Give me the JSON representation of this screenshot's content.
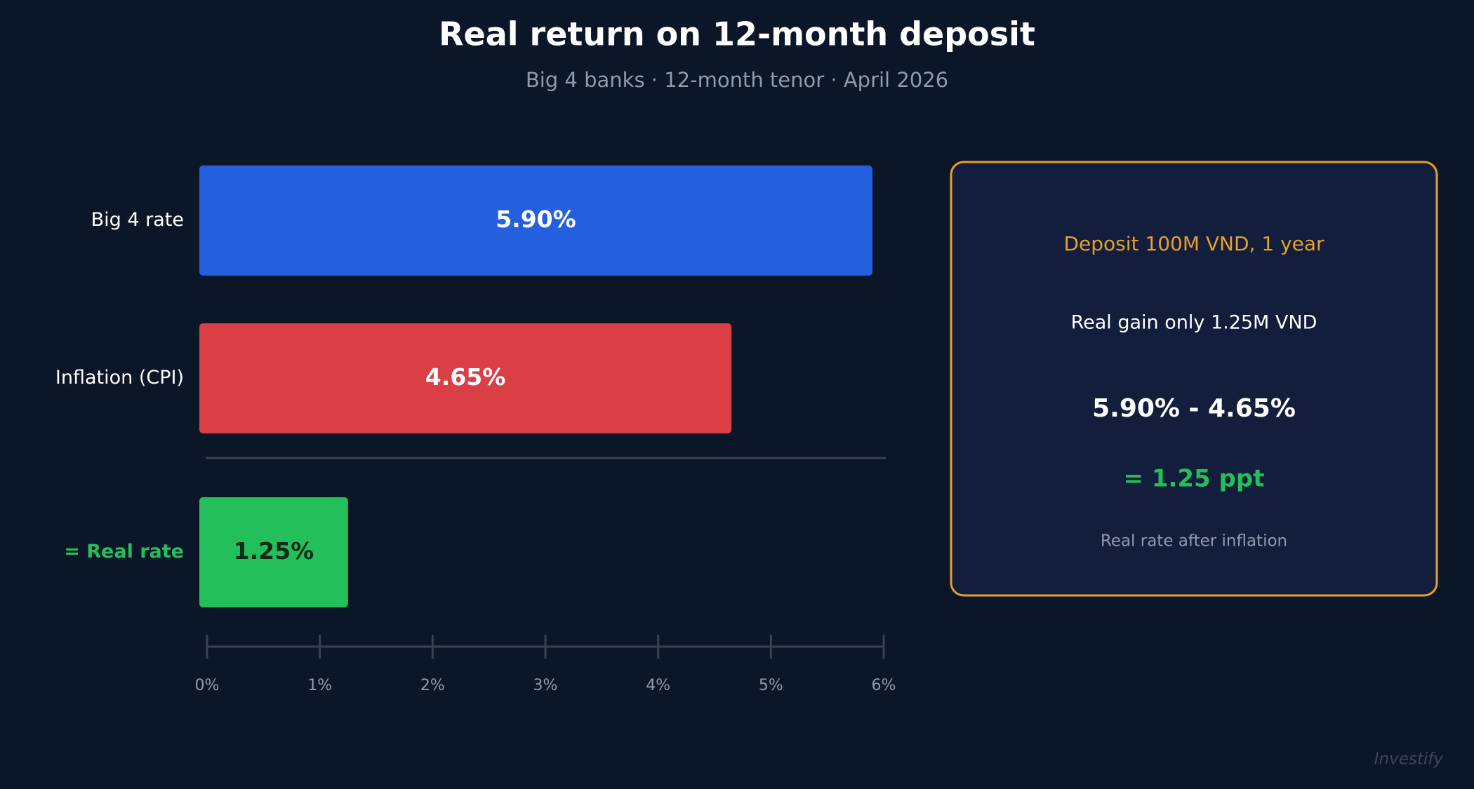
{
  "chart_data": {
    "type": "hbar",
    "title": "Real return on 12-month deposit",
    "subtitle": "Big 4 banks · 12-month tenor · April 2026",
    "categories": [
      "Big 4 rate",
      "Inflation (CPI)",
      "= Real rate"
    ],
    "values": [
      5.9,
      4.65,
      1.25
    ],
    "value_labels": [
      "5.90%",
      "4.65%",
      "1.25%"
    ],
    "colors": [
      "#245fe0",
      "#d93f44",
      "#22bf5b"
    ],
    "xlim": [
      0,
      6
    ],
    "xticks": [
      {
        "value": 0,
        "label": "0%"
      },
      {
        "value": 1,
        "label": "1%"
      },
      {
        "value": 2,
        "label": "2%"
      },
      {
        "value": 3,
        "label": "3%"
      },
      {
        "value": 4,
        "label": "4%"
      },
      {
        "value": 5,
        "label": "5%"
      },
      {
        "value": 6,
        "label": "6%"
      }
    ]
  },
  "panel": {
    "heading": "Deposit 100M VND, 1 year",
    "line1": "Real gain only 1.25M VND",
    "formula": "5.90% - 4.65%",
    "result": "= 1.25 ppt",
    "note": "Real rate after inflation"
  },
  "brand": "Investify"
}
